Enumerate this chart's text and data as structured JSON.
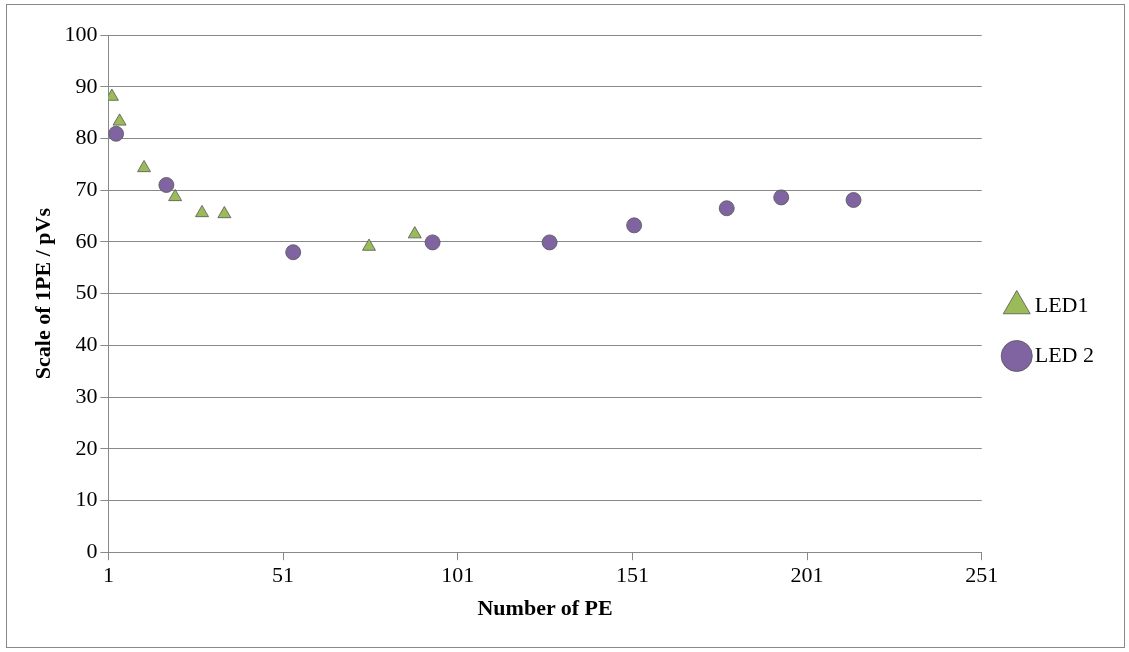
{
  "chart_data": {
    "type": "scatter",
    "xlabel": "Number of PE",
    "ylabel": "Scale of 1PE / pVs",
    "xlim": [
      1,
      251
    ],
    "xticks": [
      1,
      51,
      101,
      151,
      201,
      251
    ],
    "ylim": [
      0,
      100
    ],
    "yticks": [
      0,
      10,
      20,
      30,
      40,
      50,
      60,
      70,
      80,
      90,
      100
    ],
    "grid": "y",
    "legend": "right",
    "series": [
      {
        "name": "LED1",
        "color": "#9bbb59",
        "marker": "triangle",
        "x": [
          2,
          4.2,
          11.2,
          20.1,
          27.8,
          34.2,
          75.6,
          88.7
        ],
        "values": [
          88.1,
          83.3,
          74.3,
          68.7,
          65.6,
          65.4,
          59.1,
          61.5
        ]
      },
      {
        "name": "LED 2",
        "color": "#8064a2",
        "marker": "circle",
        "x": [
          3.2,
          17.6,
          53.9,
          93.8,
          127.3,
          151.5,
          178,
          193.6,
          214.3
        ],
        "values": [
          80.9,
          71,
          58,
          59.9,
          59.9,
          63.2,
          66.5,
          68.6,
          68.1
        ]
      }
    ]
  }
}
